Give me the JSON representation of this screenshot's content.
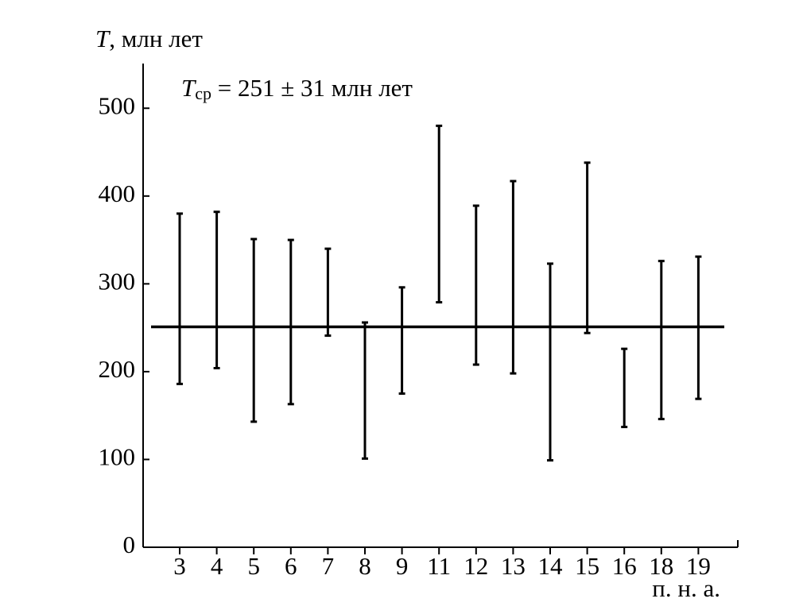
{
  "chart_data": {
    "type": "errorbar",
    "y_label_symbol": "T",
    "y_label": ", млн лет",
    "x_label": "п. н. а.",
    "annotation_symbol": "T",
    "annotation_subscript": "ср",
    "annotation": " = 251 ± 31 млн лет",
    "categories": [
      "3",
      "4",
      "5",
      "6",
      "7",
      "8",
      "9",
      "11",
      "12",
      "13",
      "14",
      "15",
      "16",
      "18",
      "19"
    ],
    "high": [
      380,
      382,
      351,
      350,
      340,
      256,
      296,
      480,
      389,
      417,
      323,
      438,
      226,
      326,
      331
    ],
    "low": [
      186,
      204,
      143,
      163,
      241,
      101,
      175,
      279,
      208,
      198,
      99,
      244,
      137,
      146,
      169
    ],
    "mean": 251,
    "color": "#000000",
    "ylim": [
      0,
      550
    ],
    "yticks": [
      0,
      100,
      200,
      300,
      400,
      500
    ]
  }
}
